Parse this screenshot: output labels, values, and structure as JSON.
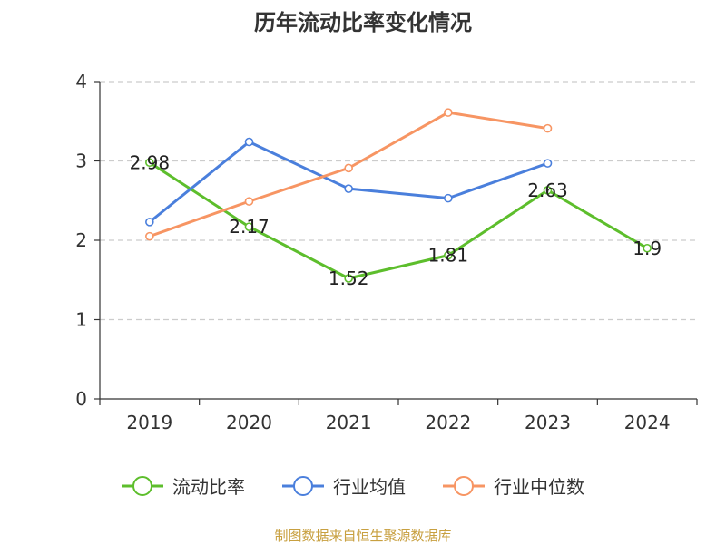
{
  "chart_data": {
    "type": "line",
    "title": "历年流动比率变化情况",
    "categories": [
      "2019",
      "2020",
      "2021",
      "2022",
      "2023",
      "2024"
    ],
    "ylim": [
      0,
      4
    ],
    "yticks": [
      0,
      1,
      2,
      3,
      4
    ],
    "grid": true,
    "legend_position": "bottom",
    "series": [
      {
        "name": "流动比率",
        "color": "#5dbe2c",
        "values": [
          2.98,
          2.17,
          1.52,
          1.81,
          2.63,
          1.9
        ],
        "labels": [
          "2.98",
          "2.17",
          "1.52",
          "1.81",
          "2.63",
          "1.9"
        ]
      },
      {
        "name": "行业均值",
        "color": "#4a7fdc",
        "values": [
          2.23,
          3.24,
          2.65,
          2.53,
          2.97,
          null
        ]
      },
      {
        "name": "行业中位数",
        "color": "#f79563",
        "values": [
          2.05,
          2.49,
          2.91,
          3.61,
          3.41,
          null
        ]
      }
    ],
    "source": "制图数据来自恒生聚源数据库",
    "source_color": "#c8a040"
  }
}
